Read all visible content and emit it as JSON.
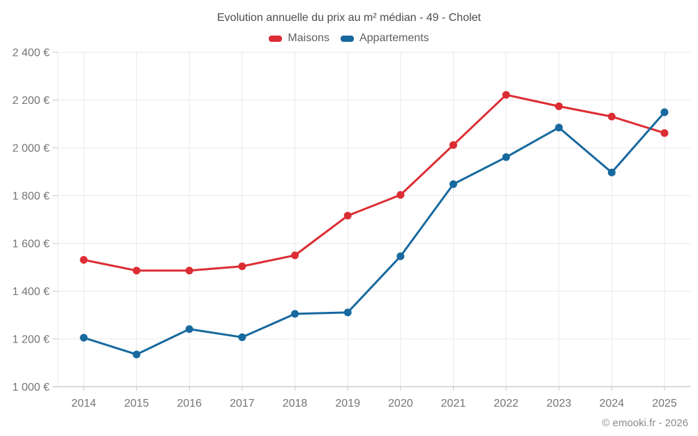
{
  "header": {
    "title": "Evolution annuelle du prix au m² médian - 49 - Cholet"
  },
  "footer": {
    "credit": "© emooki.fr - 2026"
  },
  "colors": {
    "maisons": "#dc2d34",
    "appartements": "#17699e",
    "grid_line": "#e9e9e9",
    "baseline": "#b8b8b8",
    "tick": "#c9c9c9",
    "axis_text": "#757575",
    "title_text": "#4c4c4c",
    "legend_text": "#5e5e5e",
    "footer_text": "#8a8a8a",
    "background": "#ffffff"
  },
  "chart_data": {
    "type": "line",
    "title": "Evolution annuelle du prix au m² médian - 49 - Cholet",
    "categories": [
      "2014",
      "2015",
      "2016",
      "2017",
      "2018",
      "2019",
      "2020",
      "2021",
      "2022",
      "2023",
      "2024",
      "2025"
    ],
    "series": [
      {
        "name": "Maisons",
        "color": "#dc2d34",
        "values": [
          1531,
          1486,
          1486,
          1504,
          1550,
          1716,
          1803,
          2012,
          2222,
          2174,
          2131,
          2062
        ]
      },
      {
        "name": "Appartements",
        "color": "#17699e",
        "values": [
          1205,
          1135,
          1241,
          1207,
          1305,
          1311,
          1546,
          1848,
          1961,
          2085,
          1897,
          2149
        ]
      }
    ],
    "xlabel": "",
    "ylabel": "",
    "ylim": [
      1000,
      2400
    ],
    "ytick_step": 200,
    "ytick_labels": [
      "1 000 €",
      "1 200 €",
      "1 400 €",
      "1 600 €",
      "1 800 €",
      "2 000 €",
      "2 200 €",
      "2 400 €"
    ],
    "grid": true,
    "legend_position": "top",
    "unit_suffix": " €"
  }
}
